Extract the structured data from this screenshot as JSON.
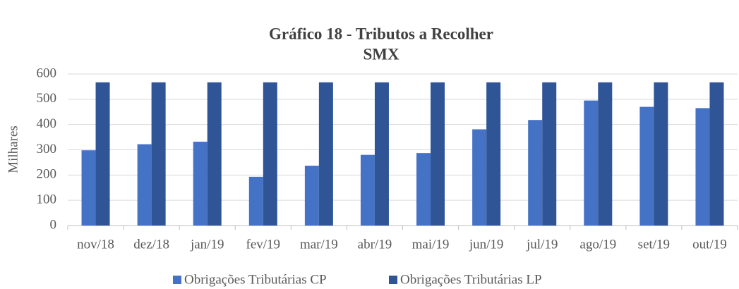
{
  "chart_data": {
    "type": "bar",
    "title": "Gráfico 18 - Tributos a Recolher",
    "subtitle": "SMX",
    "y_label": "Milhares",
    "categories": [
      "nov/18",
      "dez/18",
      "jan/19",
      "fev/19",
      "mar/19",
      "abr/19",
      "mai/19",
      "jun/19",
      "jul/19",
      "ago/19",
      "set/19",
      "out/19"
    ],
    "series": [
      {
        "name": "Obrigações Tributárias CP",
        "color": "#4472c4",
        "values": [
          298,
          322,
          332,
          193,
          237,
          280,
          287,
          381,
          418,
          495,
          470,
          465
        ]
      },
      {
        "name": "Obrigações Tributárias LP",
        "color": "#2f5597",
        "values": [
          567,
          567,
          567,
          567,
          567,
          567,
          567,
          567,
          567,
          567,
          567,
          567
        ]
      }
    ],
    "ylim": [
      0,
      600
    ],
    "yticks": [
      0,
      100,
      200,
      300,
      400,
      500,
      600
    ],
    "grid": true,
    "legend": "bottom"
  }
}
